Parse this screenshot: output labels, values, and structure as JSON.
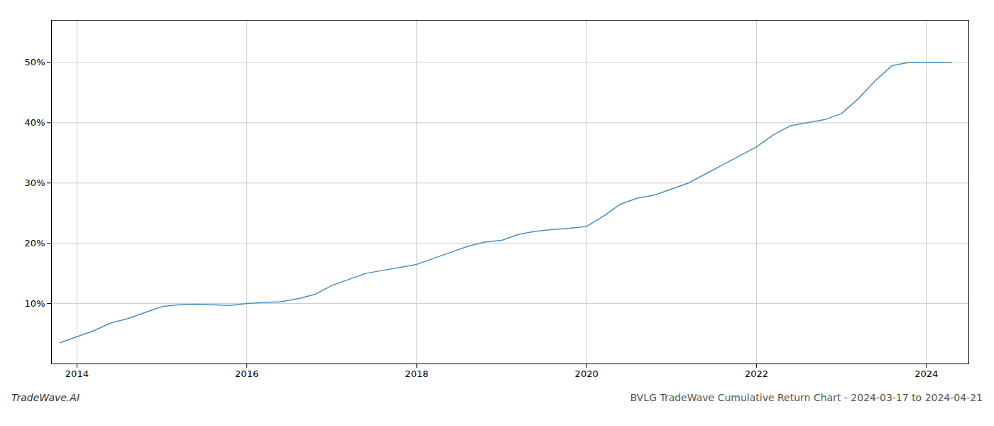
{
  "chart_data": {
    "type": "line",
    "title": "BVLG TradeWave Cumulative Return Chart - 2024-03-17 to 2024-04-21",
    "annotations": [
      "TradeWave.AI"
    ],
    "x": [
      2013.8,
      2014.0,
      2014.2,
      2014.4,
      2014.6,
      2014.8,
      2015.0,
      2015.2,
      2015.4,
      2015.6,
      2015.8,
      2016.0,
      2016.2,
      2016.4,
      2016.6,
      2016.8,
      2017.0,
      2017.2,
      2017.4,
      2017.6,
      2017.8,
      2018.0,
      2018.2,
      2018.4,
      2018.6,
      2018.8,
      2019.0,
      2019.2,
      2019.4,
      2019.6,
      2019.8,
      2020.0,
      2020.2,
      2020.4,
      2020.6,
      2020.8,
      2021.0,
      2021.2,
      2021.4,
      2021.6,
      2021.8,
      2022.0,
      2022.2,
      2022.4,
      2022.6,
      2022.8,
      2023.0,
      2023.2,
      2023.4,
      2023.6,
      2023.8,
      2024.0,
      2024.2,
      2024.3
    ],
    "values": [
      3.5,
      4.5,
      5.5,
      6.8,
      7.5,
      8.5,
      9.5,
      9.8,
      9.9,
      9.8,
      9.7,
      10.0,
      10.2,
      10.3,
      10.8,
      11.5,
      13.0,
      14.0,
      15.0,
      15.5,
      16.0,
      16.5,
      17.5,
      18.5,
      19.5,
      20.2,
      20.5,
      21.5,
      22.0,
      22.3,
      22.5,
      22.8,
      24.5,
      26.5,
      27.5,
      28.0,
      29.0,
      30.0,
      31.5,
      33.0,
      34.5,
      36.0,
      38.0,
      39.5,
      40.0,
      40.5,
      41.5,
      44.0,
      47.0,
      49.5,
      50.0,
      50.0,
      50.0,
      50.0
    ],
    "color": "#4a90c4",
    "xlim": [
      2013.7,
      2024.5
    ],
    "xticks": [
      2014,
      2016,
      2018,
      2020,
      2022,
      2024
    ],
    "ylim": [
      0,
      57
    ],
    "yticks": [
      {
        "value": 10,
        "label": "10%"
      },
      {
        "value": 20,
        "label": "20%"
      },
      {
        "value": 30,
        "label": "30%"
      },
      {
        "value": 40,
        "label": "40%"
      },
      {
        "value": 50,
        "label": "50%"
      }
    ],
    "grid": true
  }
}
